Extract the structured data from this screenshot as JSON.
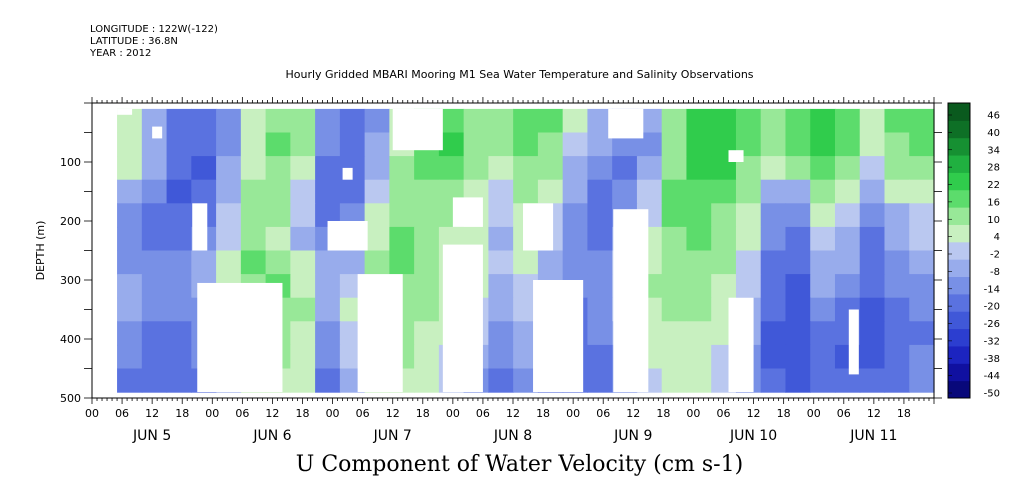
{
  "meta": {
    "longitude": "LONGITUDE : 122W(-122)",
    "latitude": "LATITUDE : 36.8N",
    "year": "YEAR : 2012"
  },
  "title": "Hourly Gridded MBARI Mooring M1 Sea Water Temperature and Salinity Observations",
  "xtitle": "U Component of Water Velocity (cm s-1)",
  "chart_data": {
    "type": "heatmap",
    "title": "Hourly Gridded MBARI Mooring M1 Sea Water Temperature and Salinity Observations",
    "xlabel": "U Component of Water Velocity (cm s-1)",
    "ylabel": "DEPTH (m)",
    "x_range_hours": [
      0,
      168
    ],
    "x_tick_labels": [
      "00",
      "06",
      "12",
      "18",
      "00",
      "06",
      "12",
      "18",
      "00",
      "06",
      "12",
      "18",
      "00",
      "06",
      "12",
      "18",
      "00",
      "06",
      "12",
      "18",
      "00",
      "06",
      "12",
      "18",
      "00",
      "06",
      "12",
      "18"
    ],
    "day_labels": [
      "JUN  5",
      "JUN  6",
      "JUN  7",
      "JUN  8",
      "JUN  9",
      "JUN 10",
      "JUN 11"
    ],
    "y_range": [
      0,
      500
    ],
    "y_inverted": true,
    "y_ticks": [
      100,
      200,
      300,
      400,
      500
    ],
    "y_tick_labels": [
      "100",
      "200",
      "300",
      "400",
      "500"
    ],
    "data_depth_range": [
      10,
      490
    ],
    "data_time_range": [
      5,
      168
    ],
    "colorbar": {
      "levels": [
        -50,
        -44,
        -38,
        -32,
        -26,
        -20,
        -14,
        -8,
        -2,
        4,
        10,
        16,
        22,
        28,
        34,
        40,
        46
      ],
      "labels": [
        "46",
        "40",
        "34",
        "28",
        "22",
        "16",
        "10",
        "4",
        "-2",
        "-8",
        "-14",
        "-20",
        "-26",
        "-32",
        "-38",
        "-44",
        "-50"
      ]
    },
    "time_columns_hours": [
      5,
      10,
      15,
      20,
      25,
      30,
      35,
      40,
      45,
      50,
      55,
      60,
      65,
      70,
      75,
      80,
      85,
      90,
      95,
      100,
      105,
      110,
      115,
      120,
      125,
      130,
      135,
      140,
      145,
      150,
      155,
      160,
      165
    ],
    "depth_rows_m": [
      20,
      60,
      100,
      140,
      180,
      220,
      260,
      300,
      340,
      380,
      420,
      460
    ],
    "values": [
      [
        4,
        -8,
        -16,
        -18,
        -10,
        6,
        14,
        10,
        -12,
        -16,
        -10,
        6,
        16,
        20,
        12,
        14,
        16,
        18,
        4,
        -6,
        -12,
        -8,
        10,
        22,
        26,
        20,
        12,
        18,
        24,
        20,
        8,
        16,
        20
      ],
      [
        6,
        -6,
        -18,
        -20,
        -12,
        6,
        16,
        12,
        -14,
        -18,
        -8,
        8,
        18,
        22,
        12,
        10,
        16,
        14,
        2,
        -8,
        -14,
        -10,
        12,
        24,
        24,
        18,
        10,
        16,
        22,
        18,
        6,
        14,
        18
      ],
      [
        8,
        -4,
        -20,
        -22,
        -8,
        8,
        14,
        6,
        -16,
        -20,
        -6,
        10,
        16,
        18,
        10,
        6,
        12,
        10,
        -4,
        -12,
        -16,
        -6,
        14,
        22,
        22,
        14,
        6,
        12,
        18,
        14,
        2,
        10,
        14
      ],
      [
        -6,
        -12,
        -22,
        -20,
        -4,
        10,
        12,
        2,
        -18,
        -18,
        -2,
        12,
        14,
        14,
        8,
        2,
        10,
        6,
        -8,
        -16,
        -14,
        -2,
        16,
        20,
        18,
        10,
        -4,
        -8,
        10,
        8,
        -6,
        4,
        8
      ],
      [
        -12,
        -16,
        -20,
        -16,
        -2,
        12,
        10,
        -2,
        -16,
        -14,
        4,
        14,
        12,
        10,
        6,
        -2,
        8,
        2,
        -12,
        -18,
        -10,
        2,
        16,
        18,
        14,
        6,
        -10,
        -14,
        4,
        2,
        -12,
        -4,
        2
      ],
      [
        -14,
        -18,
        -18,
        -12,
        2,
        14,
        8,
        -6,
        -14,
        -10,
        8,
        16,
        10,
        6,
        4,
        -4,
        6,
        -2,
        -14,
        -16,
        -6,
        6,
        14,
        16,
        12,
        4,
        -14,
        -18,
        0,
        -4,
        -16,
        -8,
        -2
      ],
      [
        -10,
        -14,
        -14,
        -8,
        6,
        16,
        14,
        4,
        -8,
        -4,
        12,
        16,
        12,
        8,
        6,
        -2,
        4,
        -4,
        -12,
        -12,
        -2,
        8,
        12,
        14,
        10,
        2,
        -16,
        -20,
        -4,
        -8,
        -18,
        -12,
        -6
      ],
      [
        -6,
        -12,
        -12,
        -6,
        8,
        14,
        16,
        8,
        -4,
        2,
        14,
        14,
        12,
        8,
        6,
        -4,
        2,
        -6,
        -14,
        -10,
        0,
        10,
        12,
        12,
        8,
        0,
        -18,
        -22,
        -8,
        -12,
        -20,
        -14,
        -10
      ],
      [
        -8,
        -14,
        -14,
        -10,
        4,
        12,
        14,
        10,
        -6,
        4,
        14,
        14,
        10,
        6,
        2,
        -8,
        0,
        -8,
        -16,
        -12,
        -2,
        8,
        10,
        10,
        6,
        -4,
        -20,
        -24,
        -12,
        -16,
        -22,
        -18,
        -14
      ],
      [
        -10,
        -16,
        -16,
        -12,
        2,
        10,
        12,
        8,
        -10,
        2,
        12,
        12,
        8,
        4,
        -2,
        -12,
        -4,
        -12,
        -18,
        -14,
        -6,
        6,
        8,
        8,
        4,
        -8,
        -22,
        -26,
        -16,
        -20,
        -24,
        -20,
        -16
      ],
      [
        -14,
        -18,
        -18,
        -14,
        -2,
        8,
        10,
        6,
        -14,
        -2,
        10,
        10,
        6,
        2,
        -6,
        -14,
        -8,
        -16,
        -20,
        -16,
        -10,
        4,
        6,
        6,
        2,
        -12,
        -22,
        -24,
        -18,
        -22,
        -22,
        -18,
        -14
      ],
      [
        -16,
        -20,
        -18,
        -16,
        -6,
        6,
        8,
        4,
        -16,
        -6,
        8,
        8,
        4,
        -2,
        -10,
        -16,
        -12,
        -18,
        -20,
        -18,
        -12,
        2,
        4,
        4,
        0,
        -14,
        -20,
        -22,
        -18,
        -20,
        -18,
        -16,
        -12
      ]
    ],
    "missing_regions": [
      {
        "hours": [
          5,
          8
        ],
        "depth_m": [
          10,
          20
        ]
      },
      {
        "hours": [
          12,
          14
        ],
        "depth_m": [
          40,
          60
        ]
      },
      {
        "hours": [
          20,
          23
        ],
        "depth_m": [
          170,
          250
        ]
      },
      {
        "hours": [
          21,
          38
        ],
        "depth_m": [
          305,
          490
        ]
      },
      {
        "hours": [
          50,
          52
        ],
        "depth_m": [
          110,
          130
        ]
      },
      {
        "hours": [
          47,
          55
        ],
        "depth_m": [
          200,
          250
        ]
      },
      {
        "hours": [
          53,
          62
        ],
        "depth_m": [
          290,
          490
        ]
      },
      {
        "hours": [
          60,
          70
        ],
        "depth_m": [
          10,
          80
        ]
      },
      {
        "hours": [
          72,
          78
        ],
        "depth_m": [
          160,
          210
        ]
      },
      {
        "hours": [
          70,
          78
        ],
        "depth_m": [
          240,
          490
        ]
      },
      {
        "hours": [
          86,
          92
        ],
        "depth_m": [
          170,
          250
        ]
      },
      {
        "hours": [
          88,
          98
        ],
        "depth_m": [
          300,
          490
        ]
      },
      {
        "hours": [
          103,
          110
        ],
        "depth_m": [
          10,
          60
        ]
      },
      {
        "hours": [
          104,
          111
        ],
        "depth_m": [
          180,
          490
        ]
      },
      {
        "hours": [
          127,
          130
        ],
        "depth_m": [
          80,
          100
        ]
      },
      {
        "hours": [
          127,
          132
        ],
        "depth_m": [
          330,
          490
        ]
      },
      {
        "hours": [
          151,
          153
        ],
        "depth_m": [
          350,
          460
        ]
      }
    ]
  }
}
